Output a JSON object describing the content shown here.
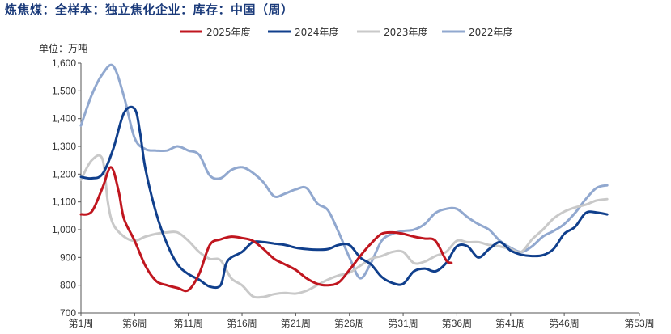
{
  "header": {
    "title": "炼焦煤：全样本：独立焦化企业：库存：中国（周）"
  },
  "chart_data": {
    "type": "line",
    "title": "炼焦煤：全样本：独立焦化企业：库存：中国（周）",
    "ylabel": "单位：万吨",
    "xlabel": "",
    "ylim": [
      700,
      1600
    ],
    "yticks": [
      700,
      800,
      900,
      "1,000",
      "1,100",
      "1,200",
      "1,300",
      "1,400",
      "1,500",
      "1,600"
    ],
    "xlim": [
      1,
      53
    ],
    "xticks": [
      {
        "x": 1,
        "label": "第1周"
      },
      {
        "x": 6,
        "label": "第6周"
      },
      {
        "x": 11,
        "label": "第11周"
      },
      {
        "x": 16,
        "label": "第16周"
      },
      {
        "x": 21,
        "label": "第21周"
      },
      {
        "x": 26,
        "label": "第26周"
      },
      {
        "x": 31,
        "label": "第31周"
      },
      {
        "x": 36,
        "label": "第36周"
      },
      {
        "x": 41,
        "label": "第41周"
      },
      {
        "x": 46,
        "label": "第46周"
      },
      {
        "x": 53,
        "label": "第53周"
      }
    ],
    "grid": false,
    "legend_position": "top",
    "series": [
      {
        "name": "2025年度",
        "color": "#c0161f",
        "points": [
          [
            1,
            1055
          ],
          [
            2,
            1065
          ],
          [
            3,
            1150
          ],
          [
            3.8,
            1225
          ],
          [
            4.5,
            1140
          ],
          [
            5,
            1040
          ],
          [
            6,
            960
          ],
          [
            7,
            870
          ],
          [
            8,
            815
          ],
          [
            9,
            800
          ],
          [
            10,
            790
          ],
          [
            11,
            782
          ],
          [
            12,
            840
          ],
          [
            13,
            945
          ],
          [
            14,
            965
          ],
          [
            15,
            975
          ],
          [
            16,
            970
          ],
          [
            17,
            960
          ],
          [
            18,
            930
          ],
          [
            19,
            895
          ],
          [
            20,
            875
          ],
          [
            21,
            855
          ],
          [
            22,
            825
          ],
          [
            23,
            805
          ],
          [
            24,
            800
          ],
          [
            25,
            810
          ],
          [
            26,
            855
          ],
          [
            27,
            905
          ],
          [
            28,
            950
          ],
          [
            29,
            985
          ],
          [
            30,
            990
          ],
          [
            31,
            985
          ],
          [
            32,
            975
          ],
          [
            33,
            968
          ],
          [
            34,
            960
          ],
          [
            35,
            890
          ],
          [
            35.5,
            880
          ]
        ]
      },
      {
        "name": "2024年度",
        "color": "#103f8c",
        "points": [
          [
            1,
            1190
          ],
          [
            2,
            1185
          ],
          [
            3,
            1200
          ],
          [
            4,
            1290
          ],
          [
            5,
            1420
          ],
          [
            6,
            1435
          ],
          [
            6.5,
            1350
          ],
          [
            7,
            1220
          ],
          [
            8,
            1060
          ],
          [
            9,
            950
          ],
          [
            10,
            875
          ],
          [
            11,
            840
          ],
          [
            12,
            820
          ],
          [
            13,
            795
          ],
          [
            14,
            800
          ],
          [
            14.5,
            875
          ],
          [
            15,
            900
          ],
          [
            16,
            920
          ],
          [
            17,
            955
          ],
          [
            18,
            955
          ],
          [
            19,
            950
          ],
          [
            20,
            945
          ],
          [
            21,
            935
          ],
          [
            22,
            930
          ],
          [
            23,
            928
          ],
          [
            24,
            930
          ],
          [
            25,
            945
          ],
          [
            26,
            945
          ],
          [
            27,
            900
          ],
          [
            28,
            875
          ],
          [
            29,
            830
          ],
          [
            30,
            808
          ],
          [
            31,
            805
          ],
          [
            32,
            850
          ],
          [
            33,
            860
          ],
          [
            34,
            850
          ],
          [
            35,
            880
          ],
          [
            36,
            940
          ],
          [
            37,
            940
          ],
          [
            38,
            900
          ],
          [
            39,
            930
          ],
          [
            40,
            955
          ],
          [
            41,
            925
          ],
          [
            42,
            910
          ],
          [
            43,
            905
          ],
          [
            44,
            908
          ],
          [
            45,
            930
          ],
          [
            46,
            985
          ],
          [
            47,
            1010
          ],
          [
            48,
            1060
          ],
          [
            49,
            1062
          ],
          [
            50,
            1055
          ]
        ]
      },
      {
        "name": "2023年度",
        "color": "#c9c9c9",
        "points": [
          [
            1,
            1180
          ],
          [
            2,
            1250
          ],
          [
            3,
            1255
          ],
          [
            3.5,
            1100
          ],
          [
            4,
            1020
          ],
          [
            5,
            975
          ],
          [
            6,
            960
          ],
          [
            7,
            975
          ],
          [
            8,
            985
          ],
          [
            9,
            990
          ],
          [
            10,
            990
          ],
          [
            11,
            960
          ],
          [
            12,
            920
          ],
          [
            13,
            895
          ],
          [
            14,
            890
          ],
          [
            15,
            825
          ],
          [
            16,
            800
          ],
          [
            17,
            760
          ],
          [
            18,
            758
          ],
          [
            19,
            768
          ],
          [
            20,
            772
          ],
          [
            21,
            770
          ],
          [
            22,
            780
          ],
          [
            23,
            800
          ],
          [
            24,
            820
          ],
          [
            25,
            835
          ],
          [
            26,
            845
          ],
          [
            27,
            870
          ],
          [
            28,
            895
          ],
          [
            29,
            905
          ],
          [
            30,
            920
          ],
          [
            31,
            920
          ],
          [
            32,
            880
          ],
          [
            33,
            885
          ],
          [
            34,
            905
          ],
          [
            35,
            920
          ],
          [
            36,
            960
          ],
          [
            37,
            955
          ],
          [
            38,
            955
          ],
          [
            39,
            945
          ],
          [
            40,
            940
          ],
          [
            41,
            930
          ],
          [
            42,
            920
          ],
          [
            43,
            965
          ],
          [
            44,
            1000
          ],
          [
            45,
            1040
          ],
          [
            46,
            1065
          ],
          [
            47,
            1080
          ],
          [
            48,
            1090
          ],
          [
            49,
            1105
          ],
          [
            50,
            1110
          ]
        ]
      },
      {
        "name": "2022年度",
        "color": "#91a8cf",
        "points": [
          [
            1,
            1375
          ],
          [
            2,
            1485
          ],
          [
            3,
            1560
          ],
          [
            4,
            1590
          ],
          [
            5,
            1480
          ],
          [
            6,
            1330
          ],
          [
            7,
            1290
          ],
          [
            8,
            1285
          ],
          [
            9,
            1285
          ],
          [
            10,
            1300
          ],
          [
            11,
            1285
          ],
          [
            12,
            1270
          ],
          [
            13,
            1195
          ],
          [
            14,
            1185
          ],
          [
            15,
            1215
          ],
          [
            16,
            1225
          ],
          [
            17,
            1205
          ],
          [
            18,
            1170
          ],
          [
            19,
            1120
          ],
          [
            20,
            1130
          ],
          [
            21,
            1145
          ],
          [
            22,
            1150
          ],
          [
            23,
            1095
          ],
          [
            24,
            1070
          ],
          [
            25,
            990
          ],
          [
            26,
            900
          ],
          [
            27,
            825
          ],
          [
            28,
            880
          ],
          [
            29,
            960
          ],
          [
            30,
            985
          ],
          [
            31,
            995
          ],
          [
            32,
            1000
          ],
          [
            33,
            1020
          ],
          [
            34,
            1060
          ],
          [
            35,
            1075
          ],
          [
            36,
            1075
          ],
          [
            37,
            1045
          ],
          [
            38,
            1020
          ],
          [
            39,
            1000
          ],
          [
            40,
            960
          ],
          [
            41,
            935
          ],
          [
            42,
            920
          ],
          [
            43,
            940
          ],
          [
            44,
            975
          ],
          [
            45,
            995
          ],
          [
            46,
            1020
          ],
          [
            47,
            1060
          ],
          [
            48,
            1110
          ],
          [
            49,
            1150
          ],
          [
            50,
            1160
          ]
        ]
      }
    ]
  }
}
